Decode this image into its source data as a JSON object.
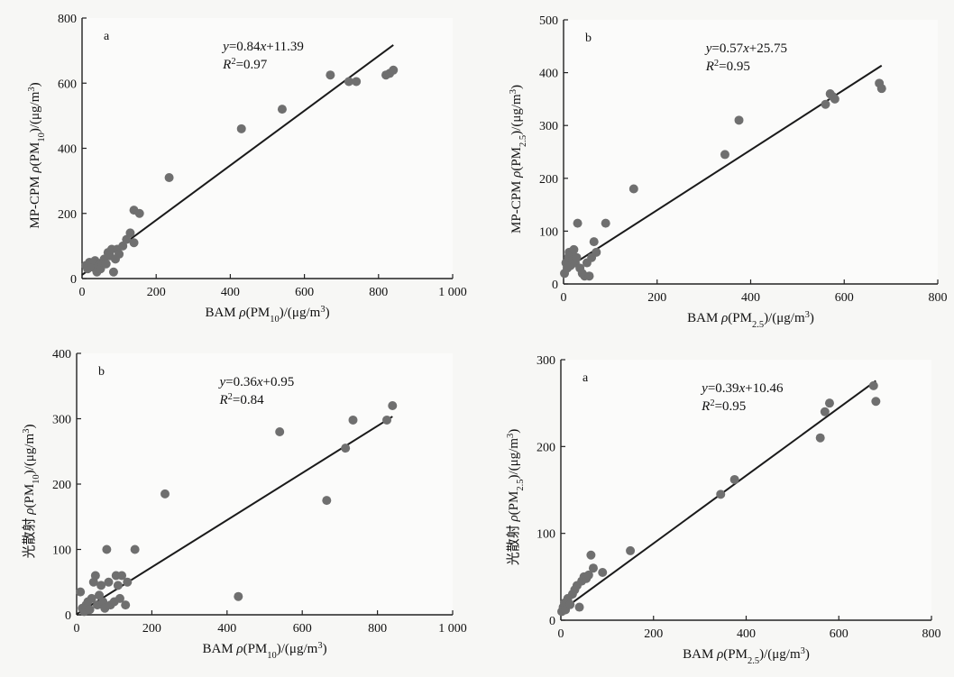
{
  "chart_data": [
    {
      "type": "scatter",
      "panel_label": "a",
      "xlabel": "BAM ρ(PM10)/(μg/m3)",
      "ylabel": "MP-CPM ρ(PM10)/(μg/m3)",
      "xlim": [
        0,
        1000
      ],
      "ylim": [
        0,
        800
      ],
      "xticks": [
        "0",
        "200",
        "400",
        "600",
        "800",
        "1 000"
      ],
      "yticks": [
        "0",
        "200",
        "400",
        "600",
        "800"
      ],
      "equation": "y=0.84x+11.39",
      "r2": "R2=0.97",
      "fit": {
        "slope": 0.84,
        "intercept": 11.39,
        "x_range": [
          0,
          840
        ]
      },
      "points": [
        [
          10,
          40
        ],
        [
          15,
          30
        ],
        [
          20,
          50
        ],
        [
          25,
          45
        ],
        [
          30,
          35
        ],
        [
          35,
          55
        ],
        [
          40,
          20
        ],
        [
          45,
          40
        ],
        [
          50,
          30
        ],
        [
          55,
          50
        ],
        [
          60,
          60
        ],
        [
          65,
          45
        ],
        [
          70,
          80
        ],
        [
          75,
          70
        ],
        [
          80,
          90
        ],
        [
          85,
          20
        ],
        [
          90,
          60
        ],
        [
          95,
          90
        ],
        [
          100,
          75
        ],
        [
          110,
          100
        ],
        [
          120,
          120
        ],
        [
          130,
          140
        ],
        [
          140,
          110
        ],
        [
          140,
          210
        ],
        [
          155,
          200
        ],
        [
          235,
          310
        ],
        [
          430,
          460
        ],
        [
          540,
          520
        ],
        [
          670,
          625
        ],
        [
          720,
          605
        ],
        [
          740,
          605
        ],
        [
          820,
          625
        ],
        [
          830,
          630
        ],
        [
          840,
          640
        ]
      ]
    },
    {
      "type": "scatter",
      "panel_label": "b",
      "xlabel": "BAM ρ(PM2.5)/(μg/m3)",
      "ylabel": "MP-CPM ρ(PM2.5)/(μg/m3)",
      "xlim": [
        0,
        800
      ],
      "ylim": [
        0,
        500
      ],
      "xticks": [
        "0",
        "200",
        "400",
        "600",
        "800"
      ],
      "yticks": [
        "0",
        "100",
        "200",
        "300",
        "400",
        "500"
      ],
      "equation": "y=0.57x+25.75",
      "r2": "R2=0.95",
      "fit": {
        "slope": 0.57,
        "intercept": 25.75,
        "x_range": [
          0,
          680
        ]
      },
      "points": [
        [
          2,
          20
        ],
        [
          5,
          40
        ],
        [
          8,
          30
        ],
        [
          10,
          50
        ],
        [
          12,
          60
        ],
        [
          15,
          35
        ],
        [
          18,
          55
        ],
        [
          20,
          45
        ],
        [
          22,
          65
        ],
        [
          25,
          40
        ],
        [
          28,
          50
        ],
        [
          30,
          115
        ],
        [
          35,
          30
        ],
        [
          40,
          20
        ],
        [
          45,
          15
        ],
        [
          50,
          40
        ],
        [
          55,
          15
        ],
        [
          60,
          50
        ],
        [
          65,
          80
        ],
        [
          70,
          60
        ],
        [
          90,
          115
        ],
        [
          150,
          180
        ],
        [
          345,
          245
        ],
        [
          375,
          310
        ],
        [
          560,
          340
        ],
        [
          570,
          360
        ],
        [
          575,
          355
        ],
        [
          580,
          350
        ],
        [
          675,
          380
        ],
        [
          680,
          370
        ]
      ]
    },
    {
      "type": "scatter",
      "panel_label": "b",
      "xlabel": "BAM ρ(PM10)/(μg/m3)",
      "ylabel": "光散射 ρ(PM10)/(μg/m3)",
      "xlim": [
        0,
        1000
      ],
      "ylim": [
        0,
        400
      ],
      "xticks": [
        "0",
        "200",
        "400",
        "600",
        "800",
        "1 000"
      ],
      "yticks": [
        "0",
        "100",
        "200",
        "300",
        "400"
      ],
      "equation": "y=0.36x+0.95",
      "r2": "R2=0.84",
      "fit": {
        "slope": 0.36,
        "intercept": 0.95,
        "x_range": [
          0,
          840
        ]
      },
      "points": [
        [
          10,
          35
        ],
        [
          15,
          10
        ],
        [
          20,
          5
        ],
        [
          25,
          15
        ],
        [
          30,
          20
        ],
        [
          35,
          8
        ],
        [
          40,
          25
        ],
        [
          45,
          50
        ],
        [
          50,
          60
        ],
        [
          55,
          15
        ],
        [
          60,
          30
        ],
        [
          65,
          45
        ],
        [
          70,
          20
        ],
        [
          75,
          10
        ],
        [
          80,
          100
        ],
        [
          85,
          50
        ],
        [
          90,
          15
        ],
        [
          100,
          20
        ],
        [
          105,
          60
        ],
        [
          110,
          45
        ],
        [
          115,
          25
        ],
        [
          120,
          60
        ],
        [
          130,
          15
        ],
        [
          135,
          50
        ],
        [
          155,
          100
        ],
        [
          235,
          185
        ],
        [
          430,
          28
        ],
        [
          540,
          280
        ],
        [
          665,
          175
        ],
        [
          715,
          255
        ],
        [
          735,
          298
        ],
        [
          825,
          298
        ],
        [
          840,
          320
        ]
      ]
    },
    {
      "type": "scatter",
      "panel_label": "a",
      "xlabel": "BAM ρ(PM2.5)/(μg/m3)",
      "ylabel": "光散射 ρ(PM2.5)/(μg/m3)",
      "xlim": [
        0,
        800
      ],
      "ylim": [
        0,
        300
      ],
      "xticks": [
        "0",
        "200",
        "400",
        "600",
        "800"
      ],
      "yticks": [
        "0",
        "100",
        "200",
        "300"
      ],
      "equation": "y=0.39x+10.46",
      "r2": "R2=0.95",
      "fit": {
        "slope": 0.39,
        "intercept": 10.46,
        "x_range": [
          0,
          680
        ]
      },
      "points": [
        [
          2,
          10
        ],
        [
          5,
          15
        ],
        [
          8,
          20
        ],
        [
          10,
          12
        ],
        [
          15,
          25
        ],
        [
          20,
          18
        ],
        [
          25,
          30
        ],
        [
          30,
          35
        ],
        [
          35,
          40
        ],
        [
          40,
          15
        ],
        [
          45,
          45
        ],
        [
          50,
          50
        ],
        [
          55,
          48
        ],
        [
          60,
          52
        ],
        [
          65,
          75
        ],
        [
          70,
          60
        ],
        [
          90,
          55
        ],
        [
          150,
          80
        ],
        [
          345,
          145
        ],
        [
          375,
          162
        ],
        [
          560,
          210
        ],
        [
          570,
          240
        ],
        [
          580,
          250
        ],
        [
          675,
          270
        ],
        [
          680,
          252
        ]
      ]
    }
  ]
}
